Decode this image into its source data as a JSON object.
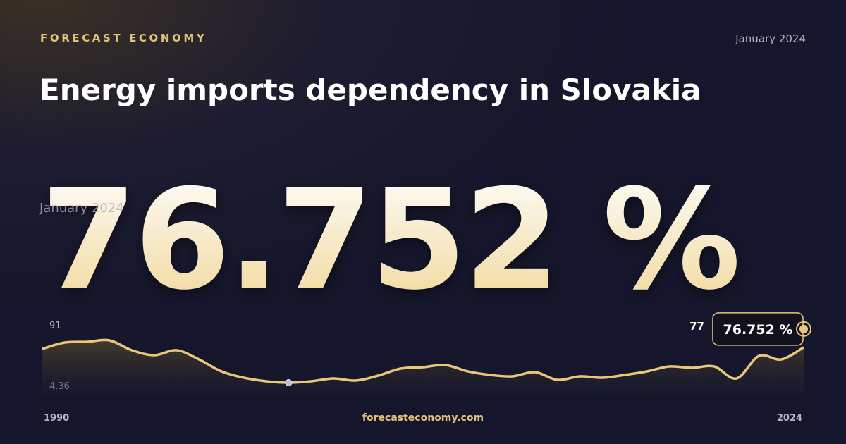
{
  "brand": "FORECAST ECONOMY",
  "date": "January 2024",
  "title": "Energy imports dependency in Slovakia",
  "footer": "forecasteconomy.com",
  "chart_data": {
    "type": "line",
    "x": [
      1990,
      1991,
      1992,
      1993,
      1994,
      1995,
      1996,
      1997,
      1998,
      1999,
      2000,
      2001,
      2002,
      2003,
      2004,
      2005,
      2006,
      2007,
      2008,
      2009,
      2010,
      2011,
      2012,
      2013,
      2014,
      2015,
      2016,
      2017,
      2018,
      2019,
      2020,
      2021,
      2022,
      2023,
      2024
    ],
    "xlim": [
      1990,
      2024
    ],
    "xticks": [
      1990,
      2024
    ],
    "ylim": [
      4.36,
      91
    ],
    "yticks": [
      4.36,
      91
    ],
    "series": [
      {
        "color": "#e8c77a",
        "values": [
          73.7,
          86.7,
          88.1,
          91,
          70.8,
          60.7,
          70.8,
          52,
          27.5,
          14.5,
          7.2,
          4.36,
          7.2,
          13,
          8.7,
          18.8,
          33.2,
          36.1,
          40.5,
          27.5,
          20.2,
          17.4,
          26,
          10.1,
          17.4,
          14.5,
          20.2,
          27.5,
          37.6,
          34.7,
          37.6,
          13,
          59.2,
          52,
          76.752
        ],
        "value_labels": [
          null,
          null,
          null,
          null,
          null,
          null,
          null,
          null,
          null,
          null,
          null,
          null,
          null,
          null,
          null,
          null,
          null,
          null,
          null,
          null,
          null,
          null,
          null,
          null,
          null,
          null,
          null,
          null,
          null,
          null,
          null,
          null,
          null,
          null,
          "77"
        ]
      }
    ],
    "latest_label": "76.752 %"
  }
}
